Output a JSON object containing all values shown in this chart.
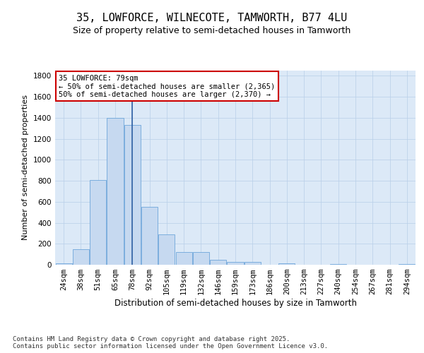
{
  "title": "35, LOWFORCE, WILNECOTE, TAMWORTH, B77 4LU",
  "subtitle": "Size of property relative to semi-detached houses in Tamworth",
  "xlabel": "Distribution of semi-detached houses by size in Tamworth",
  "ylabel": "Number of semi-detached properties",
  "categories": [
    "24sqm",
    "38sqm",
    "51sqm",
    "65sqm",
    "78sqm",
    "92sqm",
    "105sqm",
    "119sqm",
    "132sqm",
    "146sqm",
    "159sqm",
    "173sqm",
    "186sqm",
    "200sqm",
    "213sqm",
    "227sqm",
    "240sqm",
    "254sqm",
    "267sqm",
    "281sqm",
    "294sqm"
  ],
  "values": [
    15,
    145,
    810,
    1400,
    1330,
    550,
    290,
    120,
    120,
    45,
    25,
    25,
    0,
    12,
    0,
    0,
    5,
    0,
    0,
    0,
    10
  ],
  "bar_color": "#c6d9f0",
  "bar_edge_color": "#5b9bd5",
  "bar_width": 0.95,
  "vline_x_index": 4.0,
  "vline_color": "#2e5fa3",
  "annotation_text": "35 LOWFORCE: 79sqm\n← 50% of semi-detached houses are smaller (2,365)\n50% of semi-detached houses are larger (2,370) →",
  "annotation_box_edgecolor": "#cc0000",
  "ylim": [
    0,
    1850
  ],
  "yticks": [
    0,
    200,
    400,
    600,
    800,
    1000,
    1200,
    1400,
    1600,
    1800
  ],
  "ax_facecolor": "#dce9f7",
  "fig_facecolor": "#ffffff",
  "grid_color": "#b8cfe8",
  "footnote": "Contains HM Land Registry data © Crown copyright and database right 2025.\nContains public sector information licensed under the Open Government Licence v3.0.",
  "title_fontsize": 11,
  "subtitle_fontsize": 9,
  "xlabel_fontsize": 8.5,
  "ylabel_fontsize": 8,
  "tick_fontsize": 7.5,
  "footnote_fontsize": 6.5,
  "annotation_fontsize": 7.5
}
